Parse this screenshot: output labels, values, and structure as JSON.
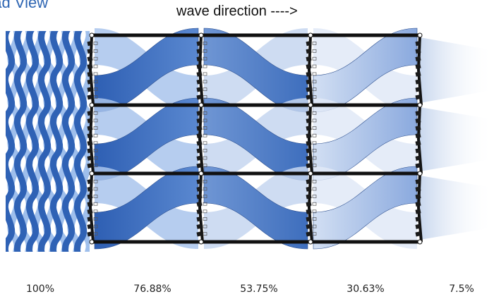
{
  "header": {
    "view_label": "ead View",
    "direction_label": "wave direction ---->"
  },
  "stages": [
    {
      "label": "100%",
      "intensity": 1.0
    },
    {
      "label": "76.88%",
      "intensity": 0.7688
    },
    {
      "label": "53.75%",
      "intensity": 0.5375
    },
    {
      "label": "30.63%",
      "intensity": 0.3063
    },
    {
      "label": "7.5%",
      "intensity": 0.075
    }
  ],
  "grid": {
    "rows": 3,
    "columns": 3
  },
  "colors": {
    "wave_dark": "#2f62b5",
    "wave_light": "#9fbfec",
    "frame": "#111111",
    "text": "#222222",
    "title": "#2f66b3"
  }
}
